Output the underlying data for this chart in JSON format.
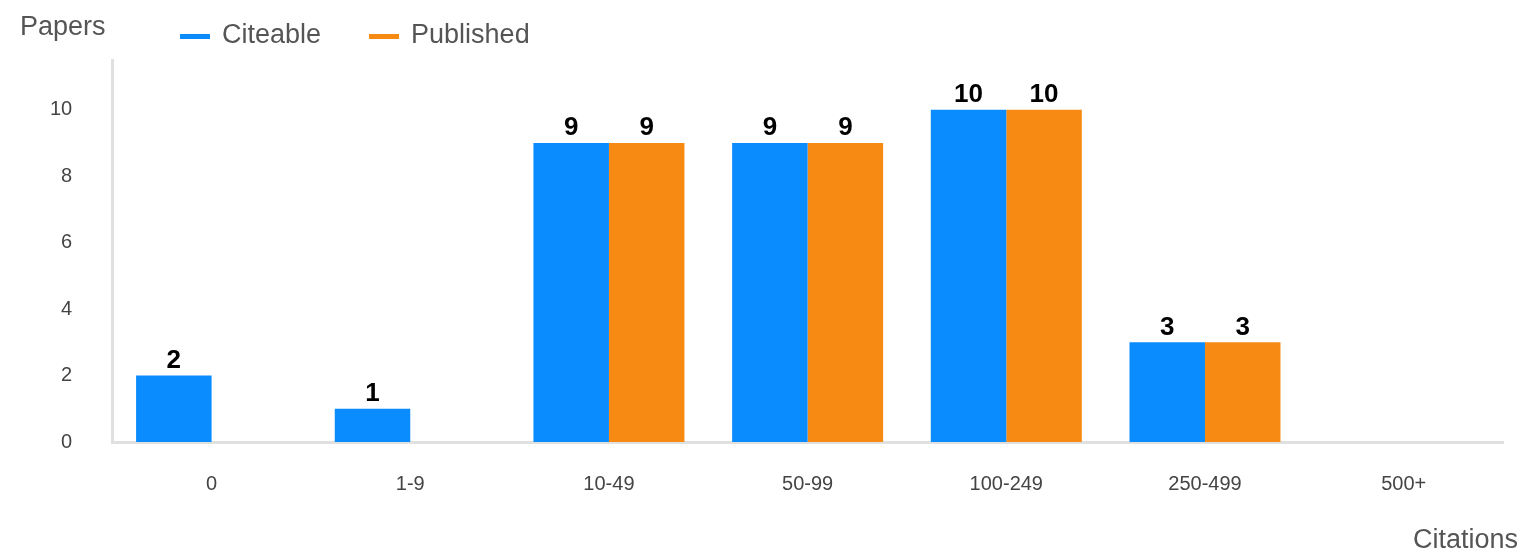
{
  "chart_data": {
    "type": "bar",
    "xlabel": "Citations",
    "ylabel": "Papers",
    "categories": [
      "0",
      "1-9",
      "10-49",
      "50-99",
      "100-249",
      "250-499",
      "500+"
    ],
    "series": [
      {
        "name": "Citeable",
        "color": "#0a8cff",
        "values": [
          2,
          1,
          9,
          9,
          10,
          3,
          0
        ],
        "value_labels": [
          "2",
          "1",
          "9",
          "9",
          "10",
          "3",
          null
        ]
      },
      {
        "name": "Published",
        "color": "#f78a12",
        "values": [
          0,
          0,
          9,
          9,
          10,
          3,
          0
        ],
        "value_labels": [
          null,
          null,
          "9",
          "9",
          "10",
          "3",
          null
        ]
      }
    ],
    "ylim": [
      0,
      11.5
    ],
    "yticks": [
      0,
      2,
      4,
      6,
      8,
      10
    ],
    "grid": false,
    "legend": "top left"
  }
}
